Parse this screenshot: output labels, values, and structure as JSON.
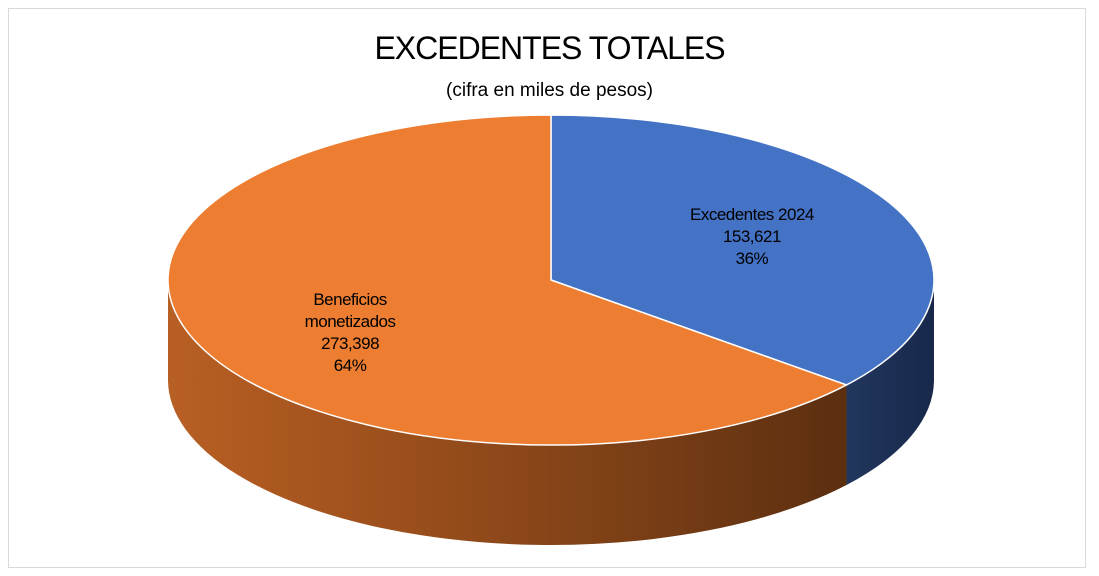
{
  "chart_data": {
    "type": "pie",
    "title": "EXCEDENTES TOTALES",
    "subtitle": "(cifra en miles de pesos)",
    "categories": [
      "Excedentes 2024",
      "Beneficios monetizados"
    ],
    "values": [
      153621,
      273398
    ],
    "value_labels": [
      "153,621",
      "273,398"
    ],
    "percentages": [
      36,
      64
    ],
    "percentage_labels": [
      "36%",
      "64%"
    ],
    "colors": [
      "#4472c4",
      "#ed7d31"
    ]
  }
}
